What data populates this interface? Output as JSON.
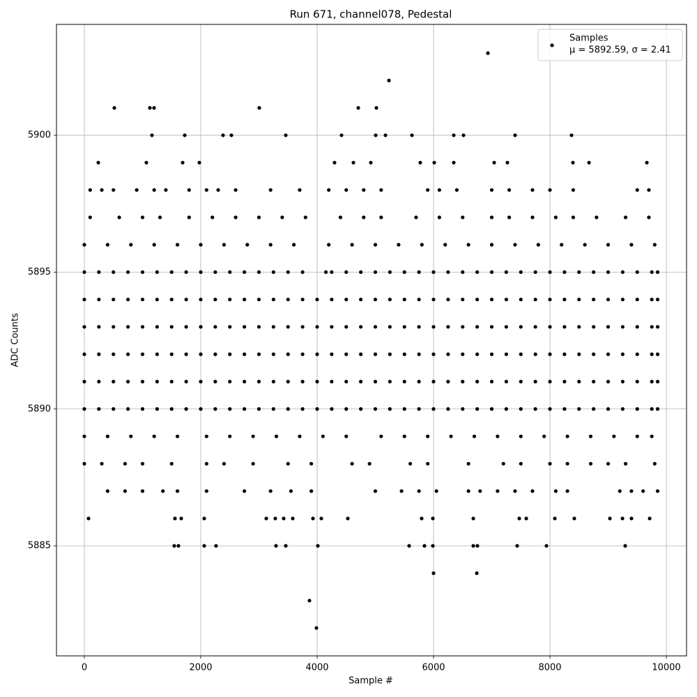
{
  "chart_data": {
    "type": "scatter",
    "title": "Run 671, channel078, Pedestal",
    "x_label": "Sample #",
    "y_label": "ADC Counts",
    "xlim": [
      -479,
      10347
    ],
    "ylim": [
      5880.98,
      5904.05
    ],
    "xticks": [
      0,
      2000,
      4000,
      6000,
      8000,
      10000
    ],
    "yticks": [
      5885,
      5890,
      5895,
      5900
    ],
    "grid": true,
    "legend": "upper right",
    "x": [
      0,
      250,
      500,
      750,
      1000,
      1250,
      1500,
      1750,
      2000,
      2250,
      2500,
      2750,
      3000,
      3250,
      3500,
      3750,
      4000,
      4250,
      4500,
      4750,
      5000,
      5250,
      5500,
      5750,
      6000,
      6250,
      6500,
      6750,
      7000,
      7250,
      7500,
      7750,
      8000,
      8250,
      8500,
      8750,
      9000,
      9250,
      9500,
      9750,
      9850,
      0,
      250,
      500,
      750,
      1000,
      1250,
      1500,
      1750,
      2000,
      2250,
      2500,
      2750,
      3000,
      3250,
      3500,
      3750,
      4000,
      4250,
      4500,
      4750,
      5000,
      5250,
      5500,
      5750,
      6000,
      6250,
      6500,
      6750,
      7000,
      7250,
      7500,
      7750,
      8000,
      8250,
      8500,
      8750,
      9000,
      9250,
      9500,
      9750,
      9850,
      0,
      250,
      500,
      750,
      1000,
      1250,
      1500,
      1750,
      2000,
      2250,
      2500,
      2750,
      3000,
      3250,
      3500,
      3750,
      4000,
      4250,
      4500,
      4750,
      5000,
      5250,
      5500,
      5750,
      6000,
      6250,
      6500,
      6750,
      7000,
      7250,
      7500,
      7750,
      8000,
      8250,
      8500,
      8750,
      9000,
      9250,
      9500,
      9750,
      9850,
      0,
      250,
      500,
      750,
      1000,
      1250,
      1500,
      1750,
      2000,
      2250,
      2500,
      2750,
      3000,
      3250,
      3500,
      3750,
      4000,
      4250,
      4500,
      4750,
      5000,
      5250,
      5500,
      5750,
      6000,
      6250,
      6500,
      6750,
      7000,
      7250,
      7500,
      7750,
      8000,
      8250,
      8500,
      8750,
      9000,
      9250,
      9500,
      9750,
      9850,
      0,
      250,
      500,
      750,
      1000,
      1250,
      1500,
      1750,
      2000,
      2250,
      2500,
      2750,
      3000,
      3250,
      3500,
      3750,
      4000,
      4250,
      4500,
      4750,
      5000,
      5250,
      5500,
      5750,
      6000,
      6250,
      6500,
      6750,
      7000,
      7250,
      7500,
      7750,
      8000,
      8250,
      8500,
      8750,
      9000,
      9250,
      9500,
      9750,
      9850,
      0,
      250,
      500,
      750,
      1000,
      1250,
      1500,
      1750,
      2000,
      2250,
      2500,
      2750,
      3000,
      3250,
      3500,
      3750,
      4150,
      4250,
      4500,
      4750,
      5000,
      5250,
      5500,
      5750,
      6000,
      6250,
      6500,
      6750,
      7000,
      7250,
      7500,
      7750,
      8000,
      8250,
      8500,
      8750,
      9000,
      9250,
      9500,
      9750,
      9850,
      0,
      400,
      800,
      1200,
      1600,
      2000,
      2400,
      2800,
      3200,
      3600,
      4200,
      4600,
      5000,
      5400,
      5800,
      6200,
      6600,
      7000,
      7400,
      7800,
      8200,
      8600,
      9000,
      9400,
      9800,
      0,
      400,
      800,
      1200,
      1600,
      2100,
      2500,
      2900,
      3300,
      3700,
      4100,
      4500,
      5100,
      5500,
      5900,
      6300,
      6700,
      7100,
      7500,
      7900,
      8300,
      8700,
      9100,
      9500,
      9750,
      100,
      600,
      1000,
      1300,
      1800,
      2200,
      2600,
      3000,
      3400,
      3800,
      4400,
      4800,
      5100,
      5700,
      6100,
      6500,
      7000,
      7300,
      7700,
      8100,
      8400,
      8800,
      9300,
      9700,
      0,
      300,
      700,
      1000,
      1500,
      2100,
      2400,
      2900,
      3500,
      3900,
      4600,
      4900,
      5600,
      5900,
      6600,
      7200,
      7500,
      8000,
      8300,
      8700,
      9000,
      9300,
      9800,
      100,
      300,
      500,
      900,
      1200,
      1400,
      1800,
      2100,
      2300,
      2600,
      3200,
      3700,
      4200,
      4500,
      4800,
      5100,
      5900,
      6100,
      6400,
      7000,
      7300,
      7700,
      8000,
      8400,
      9500,
      9700,
      400,
      700,
      1000,
      1350,
      1600,
      2100,
      2750,
      3200,
      3550,
      3900,
      5000,
      5450,
      5750,
      6050,
      6600,
      6800,
      7100,
      7400,
      7700,
      8100,
      8300,
      9200,
      9400,
      9600,
      9850,
      6934,
      5234,
      515,
      1126,
      1198,
      3006,
      4707,
      5018,
      1162,
      1725,
      2383,
      2527,
      3461,
      4419,
      5006,
      5174,
      5629,
      6347,
      6515,
      7401,
      8371,
      240,
      1066,
      1689,
      1976,
      4299,
      4623,
      4922,
      5772,
      6012,
      6347,
      7042,
      7269,
      8395,
      8671,
      9665,
      72,
      1557,
      1665,
      2060,
      3126,
      3281,
      3425,
      3581,
      3928,
      4072,
      4527,
      5796,
      5988,
      6683,
      7473,
      7593,
      8084,
      8419,
      9030,
      9246,
      9401,
      9713,
      1545,
      1617,
      2060,
      2263,
      3293,
      3461,
      4012,
      5581,
      5844,
      5988,
      6683,
      6754,
      7437,
      7940,
      9293,
      6000,
      6743,
      3868,
      3988
    ],
    "series": [
      {
        "name": "Samples",
        "color": "#000000",
        "values": [
          5890,
          5890,
          5890,
          5890,
          5890,
          5890,
          5890,
          5890,
          5890,
          5890,
          5890,
          5890,
          5890,
          5890,
          5890,
          5890,
          5890,
          5890,
          5890,
          5890,
          5890,
          5890,
          5890,
          5890,
          5890,
          5890,
          5890,
          5890,
          5890,
          5890,
          5890,
          5890,
          5890,
          5890,
          5890,
          5890,
          5890,
          5890,
          5890,
          5890,
          5890,
          5891,
          5891,
          5891,
          5891,
          5891,
          5891,
          5891,
          5891,
          5891,
          5891,
          5891,
          5891,
          5891,
          5891,
          5891,
          5891,
          5891,
          5891,
          5891,
          5891,
          5891,
          5891,
          5891,
          5891,
          5891,
          5891,
          5891,
          5891,
          5891,
          5891,
          5891,
          5891,
          5891,
          5891,
          5891,
          5891,
          5891,
          5891,
          5891,
          5891,
          5891,
          5892,
          5892,
          5892,
          5892,
          5892,
          5892,
          5892,
          5892,
          5892,
          5892,
          5892,
          5892,
          5892,
          5892,
          5892,
          5892,
          5892,
          5892,
          5892,
          5892,
          5892,
          5892,
          5892,
          5892,
          5892,
          5892,
          5892,
          5892,
          5892,
          5892,
          5892,
          5892,
          5892,
          5892,
          5892,
          5892,
          5892,
          5892,
          5892,
          5892,
          5892,
          5893,
          5893,
          5893,
          5893,
          5893,
          5893,
          5893,
          5893,
          5893,
          5893,
          5893,
          5893,
          5893,
          5893,
          5893,
          5893,
          5893,
          5893,
          5893,
          5893,
          5893,
          5893,
          5893,
          5893,
          5893,
          5893,
          5893,
          5893,
          5893,
          5893,
          5893,
          5893,
          5893,
          5893,
          5893,
          5893,
          5893,
          5893,
          5893,
          5893,
          5893,
          5894,
          5894,
          5894,
          5894,
          5894,
          5894,
          5894,
          5894,
          5894,
          5894,
          5894,
          5894,
          5894,
          5894,
          5894,
          5894,
          5894,
          5894,
          5894,
          5894,
          5894,
          5894,
          5894,
          5894,
          5894,
          5894,
          5894,
          5894,
          5894,
          5894,
          5894,
          5894,
          5894,
          5894,
          5894,
          5894,
          5894,
          5894,
          5894,
          5894,
          5894,
          5895,
          5895,
          5895,
          5895,
          5895,
          5895,
          5895,
          5895,
          5895,
          5895,
          5895,
          5895,
          5895,
          5895,
          5895,
          5895,
          5895,
          5895,
          5895,
          5895,
          5895,
          5895,
          5895,
          5895,
          5895,
          5895,
          5895,
          5895,
          5895,
          5895,
          5895,
          5895,
          5895,
          5895,
          5895,
          5895,
          5895,
          5895,
          5895,
          5895,
          5895,
          5896,
          5896,
          5896,
          5896,
          5896,
          5896,
          5896,
          5896,
          5896,
          5896,
          5896,
          5896,
          5896,
          5896,
          5896,
          5896,
          5896,
          5896,
          5896,
          5896,
          5896,
          5896,
          5896,
          5896,
          5896,
          5889,
          5889,
          5889,
          5889,
          5889,
          5889,
          5889,
          5889,
          5889,
          5889,
          5889,
          5889,
          5889,
          5889,
          5889,
          5889,
          5889,
          5889,
          5889,
          5889,
          5889,
          5889,
          5889,
          5889,
          5889,
          5897,
          5897,
          5897,
          5897,
          5897,
          5897,
          5897,
          5897,
          5897,
          5897,
          5897,
          5897,
          5897,
          5897,
          5897,
          5897,
          5897,
          5897,
          5897,
          5897,
          5897,
          5897,
          5897,
          5897,
          5888,
          5888,
          5888,
          5888,
          5888,
          5888,
          5888,
          5888,
          5888,
          5888,
          5888,
          5888,
          5888,
          5888,
          5888,
          5888,
          5888,
          5888,
          5888,
          5888,
          5888,
          5888,
          5888,
          5898,
          5898,
          5898,
          5898,
          5898,
          5898,
          5898,
          5898,
          5898,
          5898,
          5898,
          5898,
          5898,
          5898,
          5898,
          5898,
          5898,
          5898,
          5898,
          5898,
          5898,
          5898,
          5898,
          5898,
          5898,
          5898,
          5887,
          5887,
          5887,
          5887,
          5887,
          5887,
          5887,
          5887,
          5887,
          5887,
          5887,
          5887,
          5887,
          5887,
          5887,
          5887,
          5887,
          5887,
          5887,
          5887,
          5887,
          5887,
          5887,
          5887,
          5887,
          5903,
          5902,
          5901,
          5901,
          5901,
          5901,
          5901,
          5901,
          5900,
          5900,
          5900,
          5900,
          5900,
          5900,
          5900,
          5900,
          5900,
          5900,
          5900,
          5900,
          5900,
          5899,
          5899,
          5899,
          5899,
          5899,
          5899,
          5899,
          5899,
          5899,
          5899,
          5899,
          5899,
          5899,
          5899,
          5899,
          5886,
          5886,
          5886,
          5886,
          5886,
          5886,
          5886,
          5886,
          5886,
          5886,
          5886,
          5886,
          5886,
          5886,
          5886,
          5886,
          5886,
          5886,
          5886,
          5886,
          5886,
          5886,
          5885,
          5885,
          5885,
          5885,
          5885,
          5885,
          5885,
          5885,
          5885,
          5885,
          5885,
          5885,
          5885,
          5885,
          5885,
          5884,
          5884,
          5883,
          5882
        ]
      }
    ],
    "legend_stats": "μ = 5892.59, σ = 2.41"
  }
}
